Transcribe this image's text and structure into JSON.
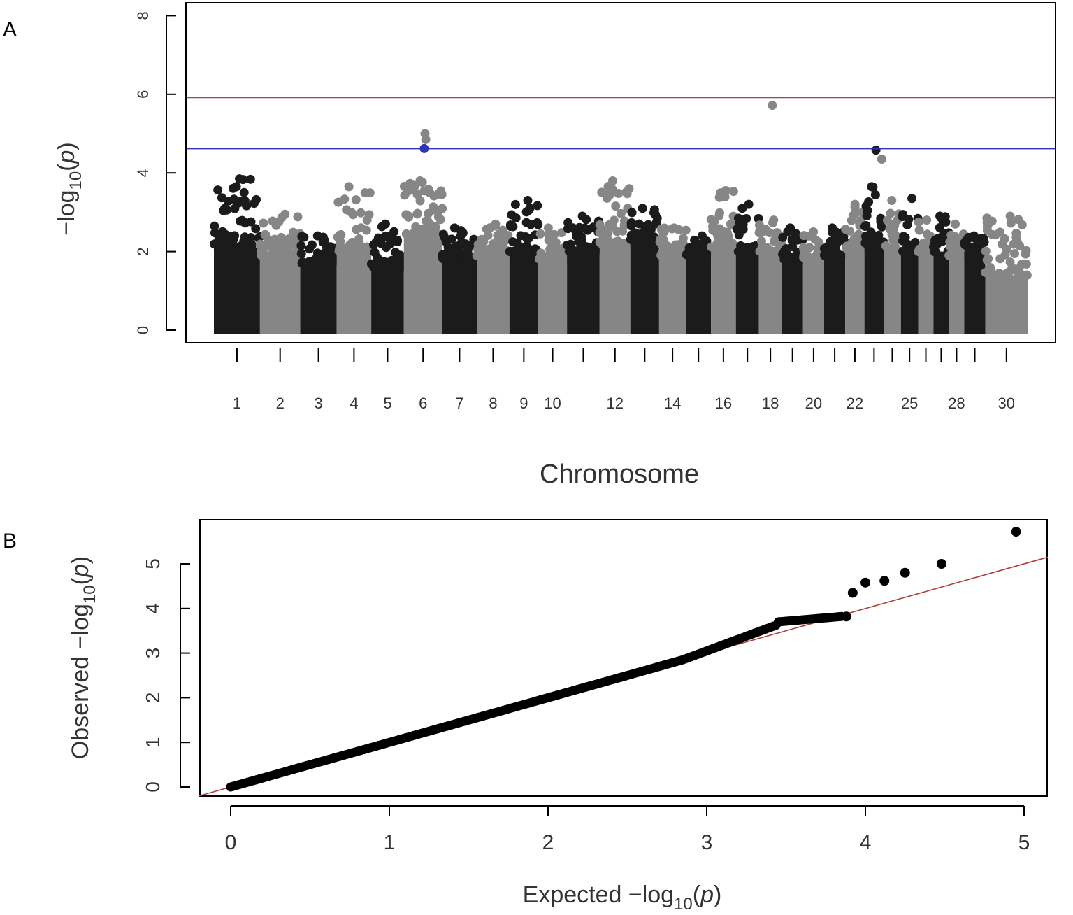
{
  "chart_data": [
    {
      "panel": "A",
      "type": "scatter",
      "ylabel_main": "−log",
      "ylabel_sub": "10",
      "ylabel_arg": "p",
      "xlabel": "Chromosome",
      "ylim": [
        0,
        8
      ],
      "yticks": [
        0,
        2,
        4,
        6,
        8
      ],
      "grid": false,
      "legend": "none",
      "colors": {
        "dark": "#1b1b1b",
        "light": "#868686",
        "suggestive": "#3232b4",
        "genomewide": "#b43c3c"
      },
      "thresholds": {
        "genomewide": 5.92,
        "suggestive": 4.62
      },
      "chromosomes": [
        {
          "id": 1,
          "start": 0.0,
          "end": 1.2,
          "dark": true,
          "base": 2.1,
          "peak": 3.85,
          "label": "1"
        },
        {
          "id": 2,
          "start": 1.2,
          "end": 2.25,
          "dark": false,
          "base": 1.9,
          "peak": 2.95,
          "label": "2"
        },
        {
          "id": 3,
          "start": 2.25,
          "end": 3.2,
          "dark": true,
          "base": 1.7,
          "peak": 2.4,
          "label": "3"
        },
        {
          "id": 4,
          "start": 3.2,
          "end": 4.1,
          "dark": false,
          "base": 2.0,
          "peak": 3.65,
          "label": "4"
        },
        {
          "id": 5,
          "start": 4.1,
          "end": 4.95,
          "dark": true,
          "base": 1.6,
          "peak": 2.7,
          "label": "5"
        },
        {
          "id": 6,
          "start": 4.95,
          "end": 5.95,
          "dark": false,
          "base": 2.4,
          "peak": 3.8,
          "label": "6"
        },
        {
          "id": 7,
          "start": 5.95,
          "end": 6.85,
          "dark": true,
          "base": 1.8,
          "peak": 2.6,
          "label": "7"
        },
        {
          "id": 8,
          "start": 6.85,
          "end": 7.7,
          "dark": false,
          "base": 1.9,
          "peak": 2.7,
          "label": "8"
        },
        {
          "id": 9,
          "start": 7.7,
          "end": 8.45,
          "dark": true,
          "base": 2.0,
          "peak": 3.3,
          "label": "9"
        },
        {
          "id": 10,
          "start": 8.45,
          "end": 9.2,
          "dark": false,
          "base": 1.8,
          "peak": 2.6,
          "label": "10"
        },
        {
          "id": 11,
          "start": 9.2,
          "end": 10.05,
          "dark": true,
          "base": 2.0,
          "peak": 2.9,
          "label": ""
        },
        {
          "id": 12,
          "start": 10.05,
          "end": 10.85,
          "dark": false,
          "base": 2.2,
          "peak": 3.8,
          "label": "12"
        },
        {
          "id": 13,
          "start": 10.85,
          "end": 11.6,
          "dark": true,
          "base": 2.3,
          "peak": 3.1,
          "label": ""
        },
        {
          "id": 14,
          "start": 11.6,
          "end": 12.3,
          "dark": false,
          "base": 1.9,
          "peak": 2.6,
          "label": "14"
        },
        {
          "id": 15,
          "start": 12.3,
          "end": 12.95,
          "dark": true,
          "base": 1.9,
          "peak": 2.4,
          "label": ""
        },
        {
          "id": 16,
          "start": 12.95,
          "end": 13.6,
          "dark": false,
          "base": 2.1,
          "peak": 3.55,
          "label": "16"
        },
        {
          "id": 17,
          "start": 13.6,
          "end": 14.2,
          "dark": true,
          "base": 2.0,
          "peak": 3.2,
          "label": ""
        },
        {
          "id": 18,
          "start": 14.2,
          "end": 14.8,
          "dark": false,
          "base": 2.0,
          "peak": 2.8,
          "label": "18"
        },
        {
          "id": 19,
          "start": 14.8,
          "end": 15.35,
          "dark": true,
          "base": 1.8,
          "peak": 2.6,
          "label": ""
        },
        {
          "id": 20,
          "start": 15.35,
          "end": 15.9,
          "dark": false,
          "base": 1.8,
          "peak": 2.5,
          "label": "20"
        },
        {
          "id": 21,
          "start": 15.9,
          "end": 16.45,
          "dark": true,
          "base": 1.9,
          "peak": 2.6,
          "label": ""
        },
        {
          "id": 22,
          "start": 16.45,
          "end": 16.95,
          "dark": false,
          "base": 2.1,
          "peak": 3.2,
          "label": "22"
        },
        {
          "id": 23,
          "start": 16.95,
          "end": 17.45,
          "dark": true,
          "base": 2.2,
          "peak": 3.65,
          "label": ""
        },
        {
          "id": 24,
          "start": 17.45,
          "end": 17.9,
          "dark": false,
          "base": 2.0,
          "peak": 3.3,
          "label": ""
        },
        {
          "id": 25,
          "start": 17.9,
          "end": 18.35,
          "dark": true,
          "base": 2.0,
          "peak": 3.35,
          "label": "25"
        },
        {
          "id": 26,
          "start": 18.35,
          "end": 18.75,
          "dark": false,
          "base": 2.0,
          "peak": 2.8,
          "label": ""
        },
        {
          "id": 27,
          "start": 18.75,
          "end": 19.15,
          "dark": true,
          "base": 2.0,
          "peak": 2.9,
          "label": ""
        },
        {
          "id": 28,
          "start": 19.15,
          "end": 19.55,
          "dark": false,
          "base": 1.9,
          "peak": 2.7,
          "label": "28"
        },
        {
          "id": 29,
          "start": 19.55,
          "end": 20.1,
          "dark": true,
          "base": 2.0,
          "peak": 2.4,
          "label": ""
        },
        {
          "id": 30,
          "start": 20.1,
          "end": 21.2,
          "dark": false,
          "base": 1.4,
          "peak": 2.9,
          "label": "30"
        }
      ],
      "highlights": [
        {
          "x": 5.5,
          "y": 5.0,
          "color": "light"
        },
        {
          "x": 5.52,
          "y": 4.85,
          "color": "light"
        },
        {
          "x": 5.48,
          "y": 4.62,
          "color": "suggestive"
        },
        {
          "x": 14.55,
          "y": 5.72,
          "color": "light"
        },
        {
          "x": 17.25,
          "y": 4.58,
          "color": "dark"
        },
        {
          "x": 17.4,
          "y": 4.35,
          "color": "light"
        }
      ]
    },
    {
      "panel": "B",
      "type": "scatter",
      "xlabel_main": "Expected  −log",
      "ylabel_main": "Observed  −log",
      "label_sub": "10",
      "label_arg": "p",
      "xlim": [
        -0.2,
        5.15
      ],
      "ylim": [
        -0.2,
        5.8
      ],
      "xticks": [
        0,
        1,
        2,
        3,
        4,
        5
      ],
      "yticks": [
        0,
        1,
        2,
        3,
        4,
        5
      ],
      "grid": false,
      "legend": "none",
      "colors": {
        "points": "#000000",
        "line": "#b43c3c"
      },
      "reference_line": {
        "slope": 1,
        "intercept": 0
      },
      "tail_points": [
        [
          3.88,
          3.82
        ],
        [
          3.92,
          4.35
        ],
        [
          4.0,
          4.58
        ],
        [
          4.12,
          4.62
        ],
        [
          4.25,
          4.8
        ],
        [
          4.48,
          5.0
        ],
        [
          4.95,
          5.72
        ]
      ]
    }
  ]
}
